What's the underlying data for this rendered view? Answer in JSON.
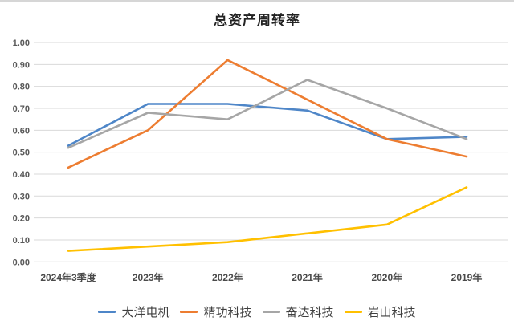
{
  "page": {
    "title": "总资产周转率"
  },
  "chart_data": {
    "type": "line",
    "title": "总资产周转率",
    "categories": [
      "2024年3季度",
      "2023年",
      "2022年",
      "2021年",
      "2020年",
      "2019年"
    ],
    "series": [
      {
        "name": "大洋电机",
        "color": "#4e86c8",
        "values": [
          0.53,
          0.72,
          0.72,
          0.69,
          0.56,
          0.57
        ]
      },
      {
        "name": "精功科技",
        "color": "#ed7d31",
        "values": [
          0.43,
          0.6,
          0.92,
          0.74,
          0.56,
          0.48
        ]
      },
      {
        "name": "奋达科技",
        "color": "#a6a6a6",
        "values": [
          0.52,
          0.68,
          0.65,
          0.83,
          0.7,
          0.56
        ]
      },
      {
        "name": "岩山科技",
        "color": "#ffc000",
        "values": [
          0.05,
          0.07,
          0.09,
          0.13,
          0.17,
          0.34
        ]
      }
    ],
    "xlabel": "",
    "ylabel": "",
    "ylim": [
      0,
      1
    ],
    "ytick_labels": [
      "0.00",
      "0.10",
      "0.20",
      "0.30",
      "0.40",
      "0.50",
      "0.60",
      "0.70",
      "0.80",
      "0.90",
      "1.00"
    ],
    "grid": "horizontal",
    "gridline_color": "#d9d9d9",
    "legend_position": "bottom"
  }
}
